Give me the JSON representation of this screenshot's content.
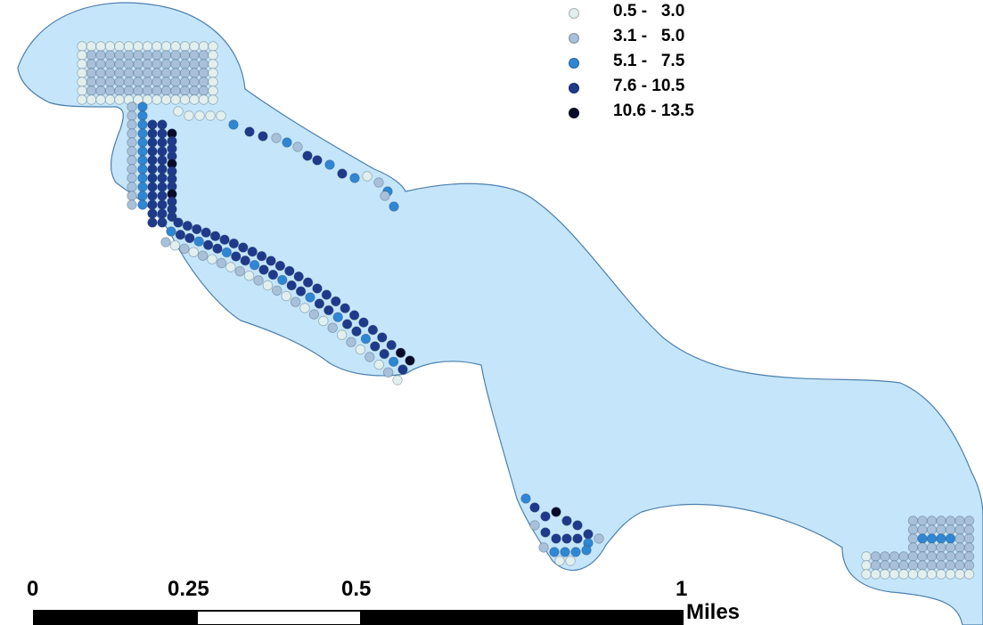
{
  "colors": {
    "water": "#c5e6fa",
    "shore": "#4c7fae",
    "bar_black": "#000000",
    "bar_white": "#ffffff"
  },
  "legend": {
    "items": [
      {
        "label": "0.5 -   3.0",
        "color": "#e1f0ee"
      },
      {
        "label": "3.1 -   5.0",
        "color": "#a8c0d9"
      },
      {
        "label": "5.1 -   7.5",
        "color": "#2f86d3"
      },
      {
        "label": "7.6 - 10.5",
        "color": "#1f3a8a"
      },
      {
        "label": "10.6 - 13.5",
        "color": "#080c2a"
      }
    ]
  },
  "scale_bar": {
    "ticks": [
      "0",
      "0.25",
      "0.5",
      "1"
    ],
    "unit": "Miles"
  }
}
